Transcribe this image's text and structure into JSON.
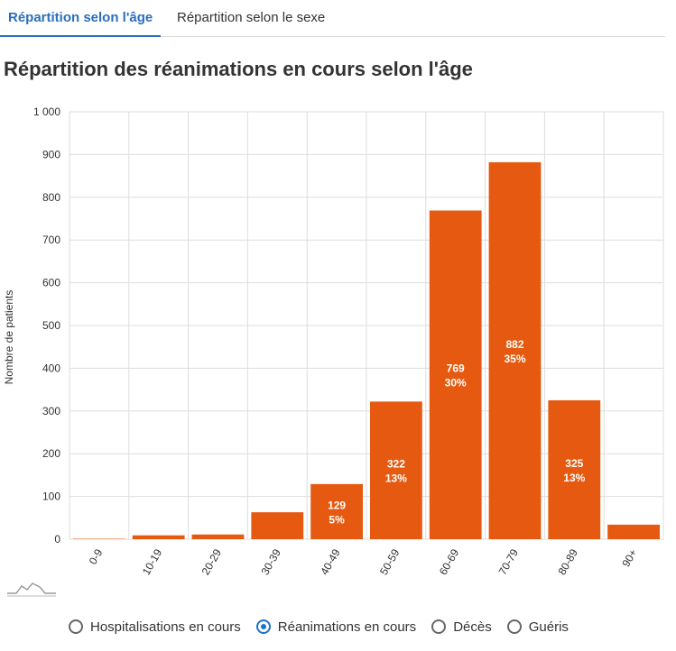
{
  "tabs": [
    {
      "label": "Répartition selon l'âge",
      "active": true
    },
    {
      "label": "Répartition selon le sexe",
      "active": false
    }
  ],
  "page_title": "Répartition des réanimations en cours selon l'âge",
  "chart_data": {
    "type": "bar",
    "title": "Répartition des réanimations en cours selon l'âge",
    "xlabel": "",
    "ylabel": "Nombre de patients",
    "categories": [
      "0-9",
      "10-19",
      "20-29",
      "30-39",
      "40-49",
      "50-59",
      "60-69",
      "70-79",
      "80-89",
      "90+"
    ],
    "values": [
      1,
      9,
      11,
      63,
      129,
      322,
      769,
      882,
      325,
      34
    ],
    "labels": [
      "",
      "",
      "",
      "",
      "129\n5%",
      "322\n13%",
      "769\n30%",
      "882\n35%",
      "325\n13%",
      ""
    ],
    "ylim": [
      0,
      1000
    ],
    "yticks": [
      0,
      100,
      200,
      300,
      400,
      500,
      600,
      700,
      800,
      900,
      1000
    ],
    "ytick_labels": [
      "0",
      "100",
      "200",
      "300",
      "400",
      "500",
      "600",
      "700",
      "800",
      "900",
      "1 000"
    ],
    "grid": true,
    "bar_color": "#e55a10"
  },
  "radio_options": [
    {
      "label": "Hospitalisations en cours",
      "checked": false
    },
    {
      "label": "Réanimations en cours",
      "checked": true
    },
    {
      "label": "Décès",
      "checked": false
    },
    {
      "label": "Guéris",
      "checked": false
    }
  ],
  "icons": {
    "mini_chart": "sparkline-icon"
  }
}
